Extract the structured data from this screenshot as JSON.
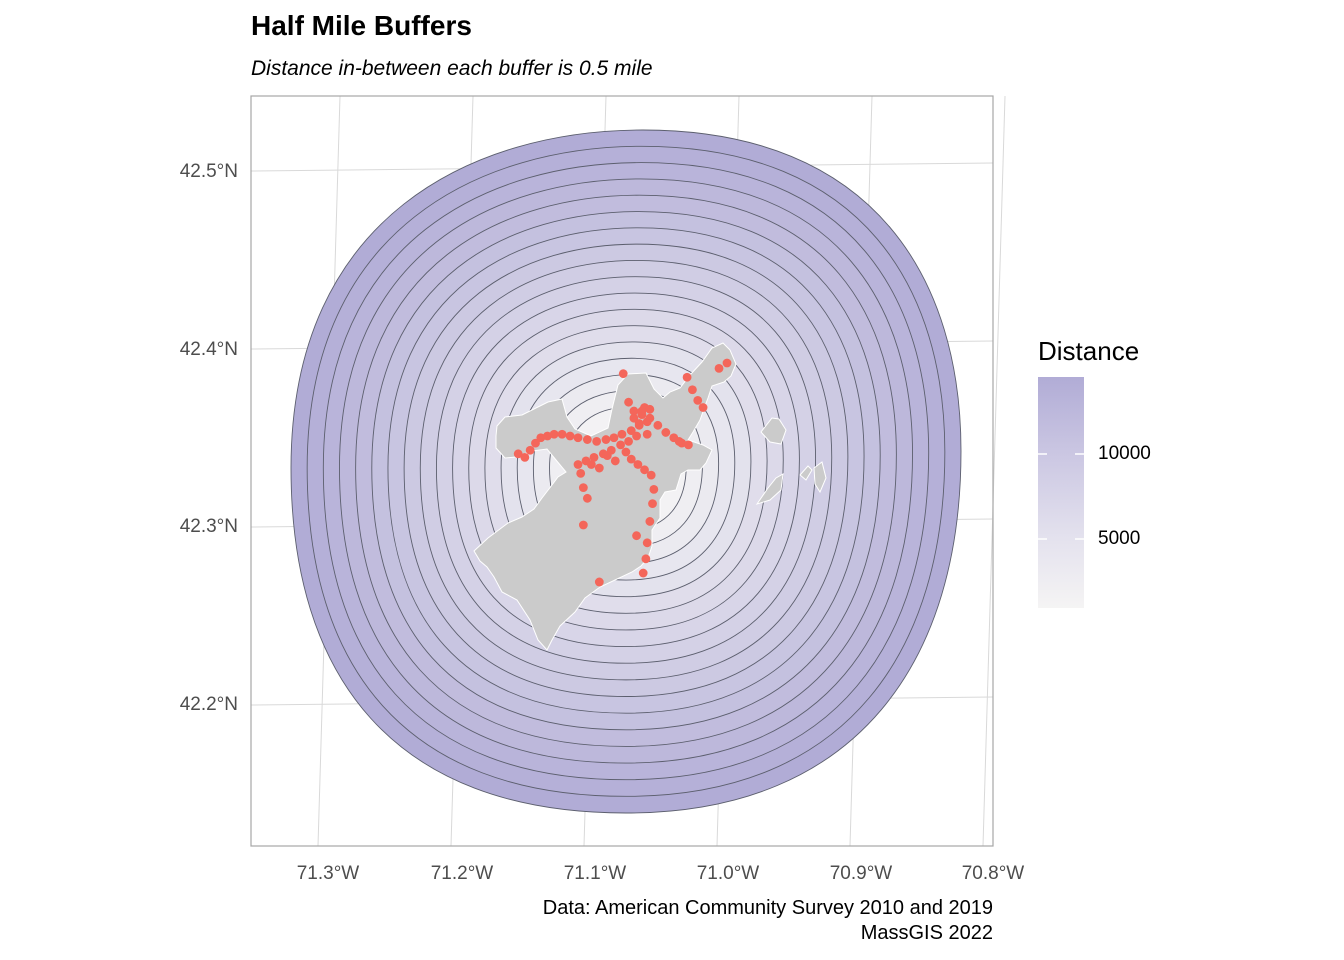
{
  "title": "Half Mile Buffers",
  "subtitle": "Distance in-between each buffer is 0.5 mile",
  "caption": {
    "line1": "Data: American Community Survey 2010 and 2019",
    "line2": "MassGIS 2022"
  },
  "legend": {
    "title": "Distance",
    "labels": [
      "10000",
      "5000"
    ],
    "colors": {
      "high": "#b1acd6",
      "low": "#f5f4f4"
    }
  },
  "axes": {
    "y_ticks": [
      "42.5°N",
      "42.4°N",
      "42.3°N",
      "42.2°N"
    ],
    "x_ticks": [
      "71.3°W",
      "71.2°W",
      "71.1°W",
      "71.0°W",
      "70.9°W",
      "70.8°W"
    ]
  },
  "colors": {
    "buffer_outer": "#b1acd6",
    "buffer_inner": "#f3f2f4",
    "buffer_stroke": "#5c5f6e",
    "land": "#cbcbcb",
    "station": "#f4665a",
    "grid": "#d9d9d9"
  },
  "map": {
    "buffer_count": 18,
    "stations": [
      [
        -71.157,
        42.34
      ],
      [
        -71.152,
        42.338
      ],
      [
        -71.148,
        42.342
      ],
      [
        -71.144,
        42.346
      ],
      [
        -71.14,
        42.349
      ],
      [
        -71.135,
        42.35
      ],
      [
        -71.13,
        42.351
      ],
      [
        -71.124,
        42.351
      ],
      [
        -71.118,
        42.35
      ],
      [
        -71.112,
        42.349
      ],
      [
        -71.105,
        42.348
      ],
      [
        -71.098,
        42.347
      ],
      [
        -71.091,
        42.348
      ],
      [
        -71.085,
        42.349
      ],
      [
        -71.079,
        42.351
      ],
      [
        -71.072,
        42.353
      ],
      [
        -71.066,
        42.356
      ],
      [
        -71.06,
        42.358
      ],
      [
        -71.064,
        42.362
      ],
      [
        -71.07,
        42.364
      ],
      [
        -71.074,
        42.369
      ],
      [
        -71.078,
        42.385
      ],
      [
        -71.062,
        42.366
      ],
      [
        -71.058,
        42.36
      ],
      [
        -71.052,
        42.356
      ],
      [
        -71.046,
        42.352
      ],
      [
        -71.04,
        42.349
      ],
      [
        -71.034,
        42.346
      ],
      [
        -71.029,
        42.345
      ],
      [
        -71.036,
        42.347
      ],
      [
        -71.03,
        42.383
      ],
      [
        -71.026,
        42.376
      ],
      [
        -71.022,
        42.37
      ],
      [
        -71.018,
        42.366
      ],
      [
        -71.006,
        42.388
      ],
      [
        -71.0,
        42.391
      ],
      [
        -71.112,
        42.334
      ],
      [
        -71.106,
        42.336
      ],
      [
        -71.1,
        42.338
      ],
      [
        -71.093,
        42.34
      ],
      [
        -71.087,
        42.342
      ],
      [
        -71.08,
        42.345
      ],
      [
        -71.074,
        42.347
      ],
      [
        -71.068,
        42.35
      ],
      [
        -71.076,
        42.341
      ],
      [
        -71.072,
        42.337
      ],
      [
        -71.067,
        42.334
      ],
      [
        -71.062,
        42.331
      ],
      [
        -71.057,
        42.328
      ],
      [
        -71.055,
        42.32
      ],
      [
        -71.056,
        42.312
      ],
      [
        -71.058,
        42.302
      ],
      [
        -71.06,
        42.29
      ],
      [
        -71.061,
        42.281
      ],
      [
        -71.063,
        42.273
      ],
      [
        -71.068,
        42.294
      ],
      [
        -71.11,
        42.329
      ],
      [
        -71.108,
        42.321
      ],
      [
        -71.105,
        42.315
      ],
      [
        -71.108,
        42.3
      ],
      [
        -71.096,
        42.268
      ],
      [
        -71.09,
        42.339
      ],
      [
        -71.084,
        42.336
      ],
      [
        -71.096,
        42.332
      ],
      [
        -71.102,
        42.334
      ],
      [
        -71.06,
        42.351
      ],
      [
        -71.066,
        42.357
      ],
      [
        -71.07,
        42.36
      ],
      [
        -71.064,
        42.364
      ],
      [
        -71.058,
        42.365
      ]
    ]
  }
}
